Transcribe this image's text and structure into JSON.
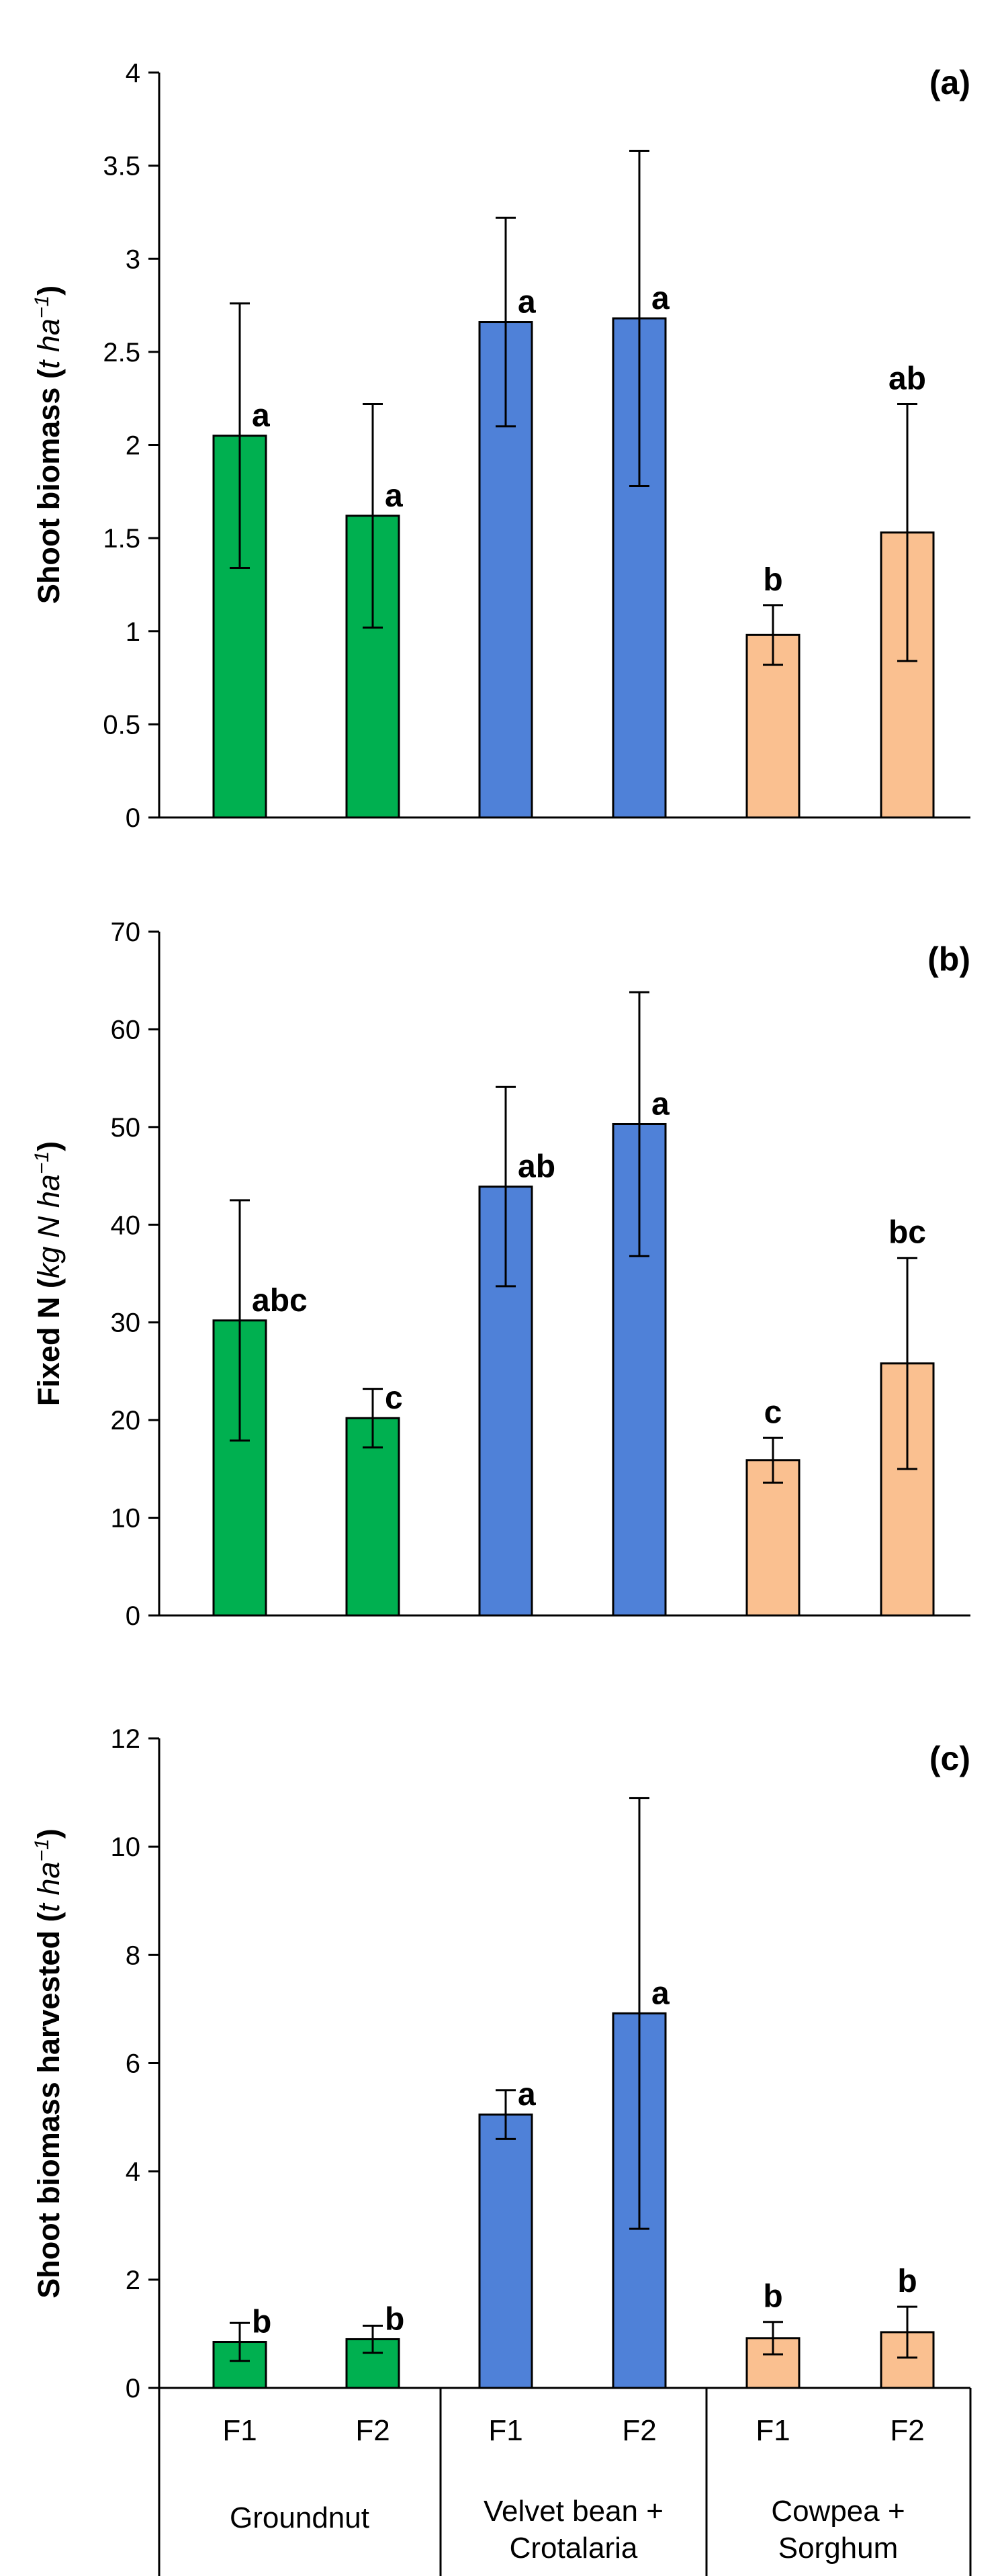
{
  "colors": {
    "Groundnut": "#00b050",
    "Velvet bean + Crotalaria": "#4f81d8",
    "Cowpea + Sorghum": "#fac090",
    "bar_stroke": "#000000",
    "axis": "#000000"
  },
  "x_categories": [
    "F1",
    "F2",
    "F1",
    "F2",
    "F1",
    "F2"
  ],
  "groups": [
    {
      "name": "Groundnut",
      "lines": [
        "Groundnut"
      ]
    },
    {
      "name": "Velvet bean + Crotalaria",
      "lines": [
        "Velvet bean +",
        "Crotalaria"
      ]
    },
    {
      "name": "Cowpea + Sorghum",
      "lines": [
        "Cowpea +",
        "Sorghum"
      ]
    }
  ],
  "chart_data": [
    {
      "type": "bar",
      "panel_label": "(a)",
      "ylabel": {
        "main": "Shoot biomass",
        "unit": "t ha",
        "sup": "−1"
      },
      "ylim": [
        0,
        4
      ],
      "yticks": [
        0,
        0.5,
        1,
        1.5,
        2,
        2.5,
        3,
        3.5,
        4
      ],
      "categories": [
        "F1",
        "F2",
        "F1",
        "F2",
        "F1",
        "F2"
      ],
      "groups": [
        "Groundnut",
        "Groundnut",
        "Velvet bean + Crotalaria",
        "Velvet bean + Crotalaria",
        "Cowpea + Sorghum",
        "Cowpea + Sorghum"
      ],
      "values": [
        2.05,
        1.62,
        2.66,
        2.68,
        0.98,
        1.53
      ],
      "errors": [
        0.71,
        0.6,
        0.56,
        0.9,
        0.16,
        0.69
      ],
      "significance": [
        "a",
        "a",
        "a",
        "a",
        "b",
        "ab"
      ]
    },
    {
      "type": "bar",
      "panel_label": "(b)",
      "ylabel": {
        "main": "Fixed N",
        "unit": "kg N ha",
        "sup": "−1"
      },
      "ylim": [
        0,
        70
      ],
      "yticks": [
        0,
        10,
        20,
        30,
        40,
        50,
        60,
        70
      ],
      "categories": [
        "F1",
        "F2",
        "F1",
        "F2",
        "F1",
        "F2"
      ],
      "groups": [
        "Groundnut",
        "Groundnut",
        "Velvet bean + Crotalaria",
        "Velvet bean + Crotalaria",
        "Cowpea + Sorghum",
        "Cowpea + Sorghum"
      ],
      "values": [
        30.2,
        20.2,
        43.9,
        50.3,
        15.9,
        25.8
      ],
      "errors": [
        12.3,
        3,
        10.2,
        13.5,
        2.3,
        10.8
      ],
      "significance": [
        "abc",
        "c",
        "ab",
        "a",
        "c",
        "bc"
      ]
    },
    {
      "type": "bar",
      "panel_label": "(c)",
      "ylabel": {
        "main": "Shoot biomass harvested",
        "unit": "t ha",
        "sup": "−1"
      },
      "ylim": [
        0,
        12
      ],
      "yticks": [
        0,
        2,
        4,
        6,
        8,
        10,
        12
      ],
      "categories": [
        "F1",
        "F2",
        "F1",
        "F2",
        "F1",
        "F2"
      ],
      "groups": [
        "Groundnut",
        "Groundnut",
        "Velvet bean + Crotalaria",
        "Velvet bean + Crotalaria",
        "Cowpea + Sorghum",
        "Cowpea + Sorghum"
      ],
      "values": [
        0.85,
        0.9,
        5.05,
        6.92,
        0.92,
        1.03
      ],
      "errors": [
        0.35,
        0.25,
        0.45,
        3.98,
        0.3,
        0.47
      ],
      "significance": [
        "b",
        "b",
        "a",
        "a",
        "b",
        "b"
      ]
    }
  ]
}
